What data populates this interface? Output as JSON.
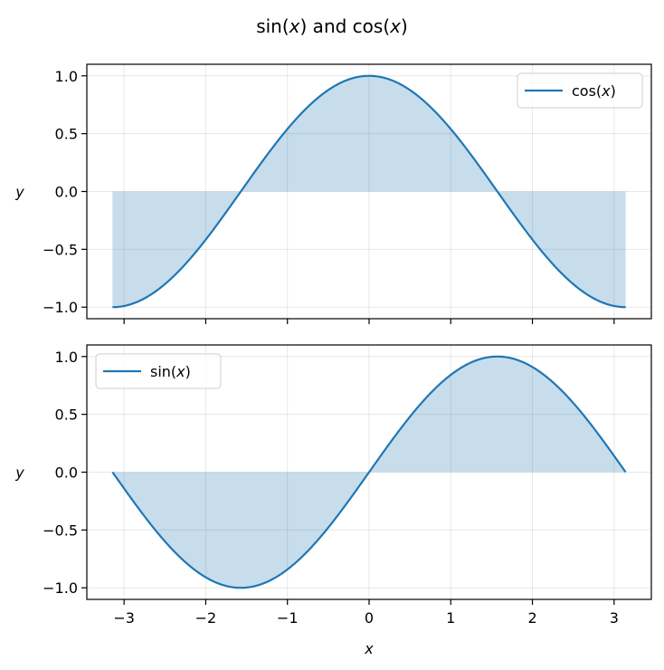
{
  "figure": {
    "suptitle": "sin(x) and cos(x)"
  },
  "chart_data": [
    {
      "type": "line",
      "function": "cos",
      "series": [
        {
          "name": "cos(x)",
          "color": "#1f77b4",
          "fill_to_zero": true,
          "fill_color": "#1f77b4",
          "fill_opacity": 0.25
        }
      ],
      "x_range": [
        -3.14159,
        3.14159
      ],
      "xlim": [
        -3.456,
        3.456
      ],
      "ylim": [
        -1.1,
        1.1
      ],
      "xticks": [
        -3,
        -2,
        -1,
        0,
        1,
        2,
        3
      ],
      "yticks": [
        -1.0,
        -0.5,
        0.0,
        0.5,
        1.0
      ],
      "ytick_labels": [
        "−1.0",
        "−0.5",
        "0.0",
        "0.5",
        "1.0"
      ],
      "xtick_labels": [],
      "xlabel": "",
      "ylabel": "y",
      "grid": true,
      "legend": "upper right",
      "legend_label": "cos(",
      "legend_label_var": "x",
      "legend_label_end": ")"
    },
    {
      "type": "line",
      "function": "sin",
      "series": [
        {
          "name": "sin(x)",
          "color": "#1f77b4",
          "fill_to_zero": true,
          "fill_color": "#1f77b4",
          "fill_opacity": 0.25
        }
      ],
      "x_range": [
        -3.14159,
        3.14159
      ],
      "xlim": [
        -3.456,
        3.456
      ],
      "ylim": [
        -1.1,
        1.1
      ],
      "xticks": [
        -3,
        -2,
        -1,
        0,
        1,
        2,
        3
      ],
      "yticks": [
        -1.0,
        -0.5,
        0.0,
        0.5,
        1.0
      ],
      "ytick_labels": [
        "−1.0",
        "−0.5",
        "0.0",
        "0.5",
        "1.0"
      ],
      "xtick_labels": [
        "−3",
        "−2",
        "−1",
        "0",
        "1",
        "2",
        "3"
      ],
      "xlabel": "x",
      "ylabel": "y",
      "grid": true,
      "legend": "upper left",
      "legend_label": "sin(",
      "legend_label_var": "x",
      "legend_label_end": ")"
    }
  ]
}
